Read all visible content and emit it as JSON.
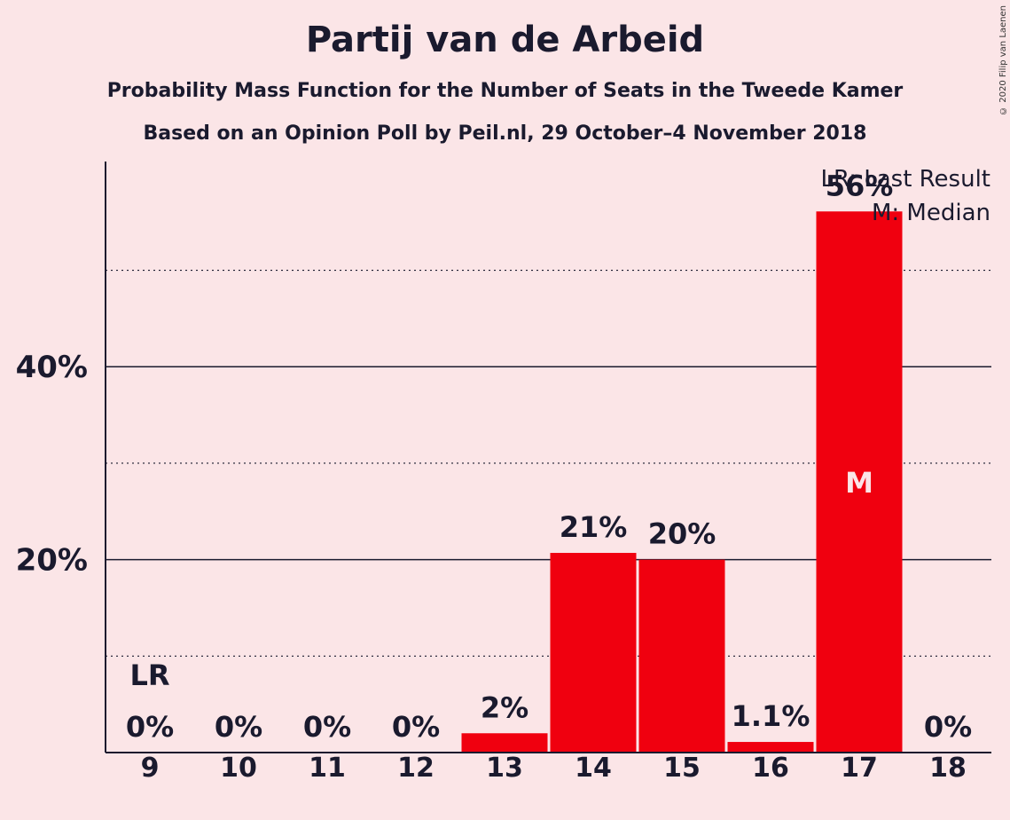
{
  "title": "Partij van de Arbeid",
  "subtitle": "Probability Mass Function for the Number of Seats in the Tweede Kamer",
  "subtitle2": "Based on an Opinion Poll by Peil.nl, 29 October–4 November 2018",
  "copyright": "© 2020 Filip van Laenen",
  "colors": {
    "background": "#fbe5e7",
    "bar": "#f0000f",
    "text": "#1a1a2e"
  },
  "chart_data": {
    "type": "bar",
    "categories": [
      "9",
      "10",
      "11",
      "12",
      "13",
      "14",
      "15",
      "16",
      "17",
      "18"
    ],
    "values": [
      0,
      0,
      0,
      0,
      2,
      20.7,
      20,
      1.1,
      56.1,
      0
    ],
    "value_labels": [
      "0%",
      "0%",
      "0%",
      "0%",
      "2%",
      "21%",
      "20%",
      "1.1%",
      "56%",
      "0%"
    ],
    "ylim": [
      0,
      61
    ],
    "yticks": [
      {
        "value": 10,
        "label": "",
        "style": "dotted"
      },
      {
        "value": 20,
        "label": "20%",
        "style": "solid"
      },
      {
        "value": 30,
        "label": "",
        "style": "dotted"
      },
      {
        "value": 40,
        "label": "40%",
        "style": "solid"
      },
      {
        "value": 50,
        "label": "",
        "style": "dotted"
      }
    ],
    "last_result_category": "9",
    "last_result_marker": "LR",
    "median_category": "17",
    "median_marker": "M",
    "legend": [
      "LR: Last Result",
      "M: Median"
    ],
    "legend_position": "top-right"
  }
}
